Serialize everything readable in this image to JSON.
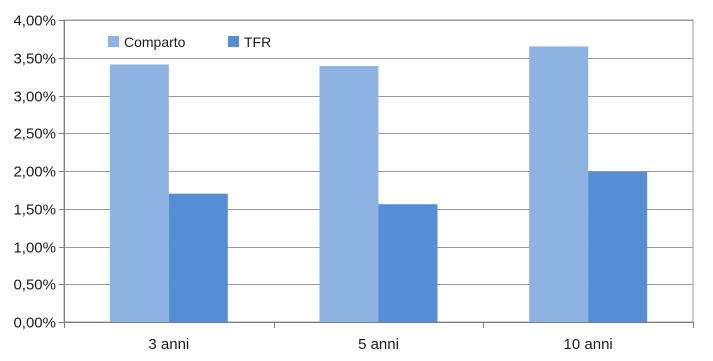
{
  "chart_data": {
    "type": "bar",
    "categories": [
      "3 anni",
      "5 anni",
      "10 anni"
    ],
    "series": [
      {
        "name": "Comparto",
        "values": [
          3.41,
          3.39,
          3.65
        ],
        "color": "#8db3e2"
      },
      {
        "name": "TFR",
        "values": [
          1.7,
          1.56,
          1.99
        ],
        "color": "#558ed5"
      }
    ],
    "ylim": [
      0,
      4
    ],
    "ytick_values": [
      0,
      0.5,
      1,
      1.5,
      2,
      2.5,
      3,
      3.5,
      4
    ],
    "ytick_labels": [
      "0,00%",
      "0,50%",
      "1,00%",
      "1,50%",
      "2,00%",
      "2,50%",
      "3,00%",
      "3,50%",
      "4,00%"
    ],
    "grid": true,
    "grid_color": "#9a9a9a",
    "legend_position": "top-left",
    "title": "",
    "xlabel": "",
    "ylabel": ""
  }
}
